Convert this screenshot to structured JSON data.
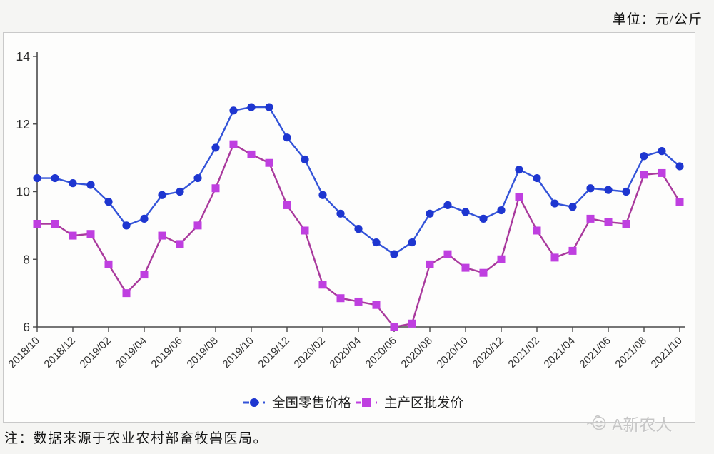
{
  "header": {
    "unit_label": "单位：元/公斤"
  },
  "note": {
    "text": "注：数据来源于农业农村部畜牧兽医局。"
  },
  "watermark": {
    "text": "A新农人",
    "icon": "smiley-logo-icon"
  },
  "chart_data": {
    "type": "line",
    "title": "",
    "xlabel": "",
    "ylabel": "",
    "ylim": [
      6,
      14
    ],
    "y_ticks": [
      "6",
      "8",
      "10",
      "12",
      "14"
    ],
    "grid": false,
    "legend_position": "bottom",
    "x_tick_every": 2,
    "x": [
      "2018/10",
      "2018/11",
      "2018/12",
      "2019/01",
      "2019/02",
      "2019/03",
      "2019/04",
      "2019/05",
      "2019/06",
      "2019/07",
      "2019/08",
      "2019/09",
      "2019/10",
      "2019/11",
      "2019/12",
      "2020/01",
      "2020/02",
      "2020/03",
      "2020/04",
      "2020/05",
      "2020/06",
      "2020/07",
      "2020/08",
      "2020/09",
      "2020/10",
      "2020/11",
      "2020/12",
      "2021/01",
      "2021/02",
      "2021/03",
      "2021/04",
      "2021/05",
      "2021/06",
      "2021/07",
      "2021/08",
      "2021/09",
      "2021/10"
    ],
    "x_tick_labels": [
      "2018/10",
      "2018/12",
      "2019/02",
      "2019/04",
      "2019/06",
      "2019/08",
      "2019/10",
      "2019/12",
      "2020/02",
      "2020/04",
      "2020/06",
      "2020/08",
      "2020/10",
      "2020/12",
      "2021/02",
      "2021/04",
      "2021/06",
      "2021/08",
      "2021/10"
    ],
    "series": [
      {
        "name": "全国零售价格",
        "marker": "circle",
        "marker_color": "#1e36d0",
        "line_color": "#3353d8",
        "values": [
          10.4,
          10.4,
          10.25,
          10.2,
          9.7,
          9.0,
          9.2,
          9.9,
          10.0,
          10.4,
          11.3,
          12.4,
          12.5,
          12.5,
          11.6,
          10.95,
          9.9,
          9.35,
          8.9,
          8.5,
          8.15,
          8.5,
          9.35,
          9.6,
          9.4,
          9.2,
          9.45,
          10.65,
          10.4,
          9.65,
          9.55,
          10.1,
          10.05,
          10.0,
          11.05,
          11.2,
          10.75
        ]
      },
      {
        "name": "主产区批发价",
        "marker": "square",
        "marker_color": "#bf3fe0",
        "line_color": "#a93a9d",
        "values": [
          9.05,
          9.05,
          8.7,
          8.75,
          7.85,
          7.0,
          7.55,
          8.7,
          8.45,
          9.0,
          10.1,
          11.4,
          11.1,
          10.85,
          9.6,
          8.85,
          7.25,
          6.85,
          6.75,
          6.65,
          6.0,
          6.1,
          7.85,
          8.15,
          7.75,
          7.6,
          8.0,
          9.85,
          8.85,
          8.05,
          8.25,
          9.2,
          9.1,
          9.05,
          10.5,
          10.55,
          9.7
        ]
      }
    ],
    "axis_color": "#4a4a4a"
  }
}
